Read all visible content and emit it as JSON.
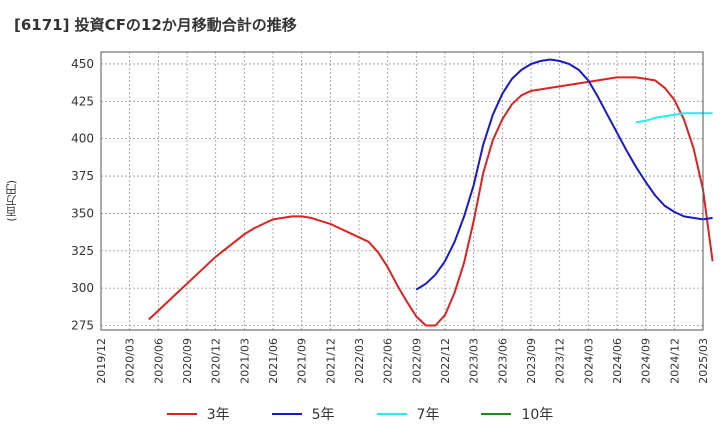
{
  "chart_data": {
    "type": "line",
    "title": "[6171]  投資CFの12か月移動合計の推移",
    "ylabel": "(百万円)",
    "xlabel": "",
    "ylim": [
      272,
      458
    ],
    "yticks": [
      275,
      300,
      325,
      350,
      375,
      400,
      425,
      450
    ],
    "x_ticks": [
      "2019/12",
      "2020/03",
      "2020/06",
      "2020/09",
      "2020/12",
      "2021/03",
      "2021/06",
      "2021/09",
      "2021/12",
      "2022/03",
      "2022/06",
      "2022/09",
      "2022/12",
      "2023/03",
      "2023/06",
      "2023/09",
      "2023/12",
      "2024/03",
      "2024/06",
      "2024/09",
      "2024/12",
      "2025/03"
    ],
    "grid": true,
    "legend_position": "bottom",
    "series": [
      {
        "name": "3年",
        "color": "#dd2222",
        "points": [
          [
            "2020/05",
            279
          ],
          [
            "2020/06",
            285
          ],
          [
            "2020/07",
            291
          ],
          [
            "2020/08",
            297
          ],
          [
            "2020/09",
            303
          ],
          [
            "2020/10",
            309
          ],
          [
            "2020/11",
            315
          ],
          [
            "2020/12",
            321
          ],
          [
            "2021/01",
            326
          ],
          [
            "2021/02",
            331
          ],
          [
            "2021/03",
            336
          ],
          [
            "2021/04",
            340
          ],
          [
            "2021/05",
            343
          ],
          [
            "2021/06",
            346
          ],
          [
            "2021/07",
            347
          ],
          [
            "2021/08",
            348
          ],
          [
            "2021/09",
            348
          ],
          [
            "2021/10",
            347
          ],
          [
            "2021/11",
            345
          ],
          [
            "2021/12",
            343
          ],
          [
            "2022/01",
            340
          ],
          [
            "2022/02",
            337
          ],
          [
            "2022/03",
            334
          ],
          [
            "2022/04",
            331
          ],
          [
            "2022/05",
            324
          ],
          [
            "2022/06",
            314
          ],
          [
            "2022/07",
            302
          ],
          [
            "2022/08",
            291
          ],
          [
            "2022/09",
            281
          ],
          [
            "2022/10",
            275
          ],
          [
            "2022/11",
            275
          ],
          [
            "2022/12",
            282
          ],
          [
            "2023/01",
            297
          ],
          [
            "2023/02",
            317
          ],
          [
            "2023/03",
            345
          ],
          [
            "2023/04",
            377
          ],
          [
            "2023/05",
            399
          ],
          [
            "2023/06",
            413
          ],
          [
            "2023/07",
            423
          ],
          [
            "2023/08",
            429
          ],
          [
            "2023/09",
            432
          ],
          [
            "2023/10",
            433
          ],
          [
            "2023/11",
            434
          ],
          [
            "2023/12",
            435
          ],
          [
            "2024/01",
            436
          ],
          [
            "2024/02",
            437
          ],
          [
            "2024/03",
            438
          ],
          [
            "2024/04",
            439
          ],
          [
            "2024/05",
            440
          ],
          [
            "2024/06",
            441
          ],
          [
            "2024/07",
            441
          ],
          [
            "2024/08",
            441
          ],
          [
            "2024/09",
            440
          ],
          [
            "2024/10",
            439
          ],
          [
            "2024/11",
            434
          ],
          [
            "2024/12",
            426
          ],
          [
            "2025/01",
            413
          ],
          [
            "2025/02",
            394
          ],
          [
            "2025/03",
            366
          ],
          [
            "2025/04",
            318
          ]
        ]
      },
      {
        "name": "5年",
        "color": "#1a1acc",
        "points": [
          [
            "2022/09",
            299
          ],
          [
            "2022/10",
            303
          ],
          [
            "2022/11",
            309
          ],
          [
            "2022/12",
            318
          ],
          [
            "2023/01",
            331
          ],
          [
            "2023/02",
            348
          ],
          [
            "2023/03",
            369
          ],
          [
            "2023/04",
            396
          ],
          [
            "2023/05",
            416
          ],
          [
            "2023/06",
            430
          ],
          [
            "2023/07",
            440
          ],
          [
            "2023/08",
            446
          ],
          [
            "2023/09",
            450
          ],
          [
            "2023/10",
            452
          ],
          [
            "2023/11",
            453
          ],
          [
            "2023/12",
            452
          ],
          [
            "2024/01",
            450
          ],
          [
            "2024/02",
            446
          ],
          [
            "2024/03",
            439
          ],
          [
            "2024/04",
            428
          ],
          [
            "2024/05",
            416
          ],
          [
            "2024/06",
            404
          ],
          [
            "2024/07",
            392
          ],
          [
            "2024/08",
            381
          ],
          [
            "2024/09",
            371
          ],
          [
            "2024/10",
            362
          ],
          [
            "2024/11",
            355
          ],
          [
            "2024/12",
            351
          ],
          [
            "2025/01",
            348
          ],
          [
            "2025/02",
            347
          ],
          [
            "2025/03",
            346
          ],
          [
            "2025/04",
            347
          ]
        ]
      },
      {
        "name": "7年",
        "color": "#22eeee",
        "points": [
          [
            "2024/08",
            411
          ],
          [
            "2024/09",
            412
          ],
          [
            "2024/10",
            414
          ],
          [
            "2024/11",
            415
          ],
          [
            "2024/12",
            416
          ],
          [
            "2025/01",
            417
          ],
          [
            "2025/02",
            417
          ],
          [
            "2025/03",
            417
          ],
          [
            "2025/04",
            417
          ]
        ]
      },
      {
        "name": "10年",
        "color": "#228822",
        "points": []
      }
    ]
  }
}
